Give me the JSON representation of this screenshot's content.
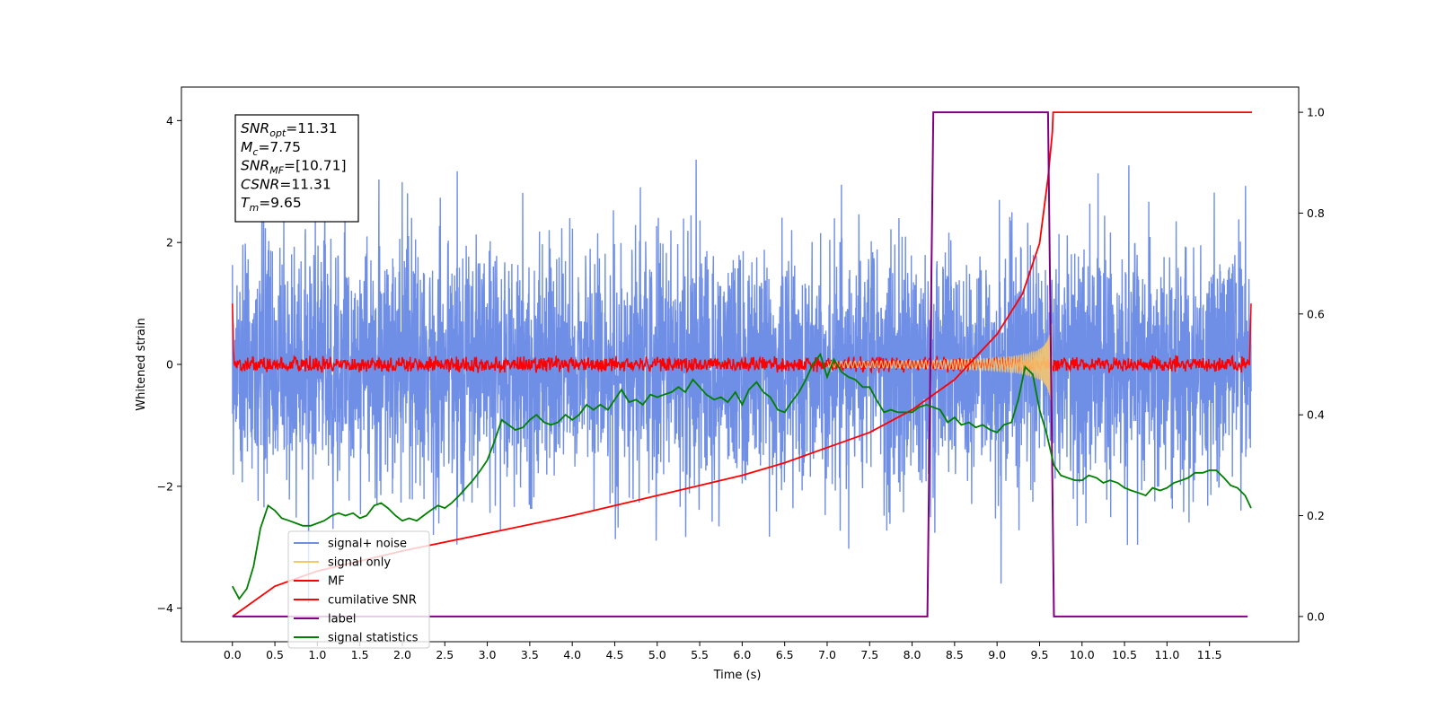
{
  "chart_data": {
    "type": "line",
    "xlabel": "Time (s)",
    "ylabel": "Whitened strain",
    "xlim": [
      -0.6,
      12.55
    ],
    "ylim": [
      -4.55,
      4.55
    ],
    "y2lim": [
      -0.05,
      1.05
    ],
    "x_ticks": [
      0.0,
      0.5,
      1.0,
      1.5,
      2.0,
      2.5,
      3.0,
      3.5,
      4.0,
      4.5,
      5.0,
      5.5,
      6.0,
      6.5,
      7.0,
      7.5,
      8.0,
      8.5,
      9.0,
      9.5,
      10.0,
      10.5,
      11.0,
      11.5
    ],
    "x_tick_labels": [
      "0.0",
      "0.5",
      "1.0",
      "1.5",
      "2.0",
      "2.5",
      "3.0",
      "3.5",
      "4.0",
      "4.5",
      "5.0",
      "5.5",
      "6.0",
      "6.5",
      "7.0",
      "7.5",
      "8.0",
      "8.5",
      "9.0",
      "9.5",
      "10.0",
      "10.5",
      "11.0",
      "11.5"
    ],
    "y_ticks": [
      -4,
      -2,
      0,
      2,
      4
    ],
    "y_tick_labels": [
      "−4",
      "−2",
      "0",
      "2",
      "4"
    ],
    "y2_ticks": [
      0.0,
      0.2,
      0.4,
      0.6,
      0.8,
      1.0
    ],
    "y2_tick_labels": [
      "0.0",
      "0.2",
      "0.4",
      "0.6",
      "0.8",
      "1.0"
    ],
    "legend_placement": "lower-left",
    "annotation": [
      {
        "name": "SNR",
        "sub": "opt",
        "value": "=11.31"
      },
      {
        "name": "M",
        "sub": "c",
        "value": "=7.75"
      },
      {
        "name": "SNR",
        "sub": "MF",
        "value": "=[10.71]"
      },
      {
        "name": "CSNR",
        "sub": "",
        "value": "=11.31"
      },
      {
        "name": "T",
        "sub": "m",
        "value": "=9.65"
      }
    ],
    "series": [
      {
        "name": "signal+ noise",
        "color": "#6f8ee6",
        "axis": "left",
        "description_values": {
          "t_start": 0.0,
          "t_end": 11.99,
          "noise_sigma": 1.0,
          "peak_max": 4.15,
          "peak_min": -4.1
        }
      },
      {
        "name": "signal only",
        "color": "#f5c86e",
        "axis": "left",
        "chirp": {
          "t_start": 7.0,
          "t_merge": 9.65,
          "amp_end": 0.9
        }
      },
      {
        "name": "MF",
        "color": "#ff0000",
        "axis": "left",
        "description_values": {
          "level": 0.0,
          "spread": 0.15,
          "edge_value": 1.0
        }
      },
      {
        "name": "cumilative SNR",
        "color": "#ff0000",
        "axis": "right",
        "points": [
          [
            0.0,
            0.0
          ],
          [
            0.5,
            0.06
          ],
          [
            1.0,
            0.09
          ],
          [
            2.0,
            0.13
          ],
          [
            3.0,
            0.165
          ],
          [
            4.0,
            0.2
          ],
          [
            5.0,
            0.24
          ],
          [
            6.0,
            0.28
          ],
          [
            6.5,
            0.305
          ],
          [
            7.0,
            0.335
          ],
          [
            7.5,
            0.365
          ],
          [
            8.0,
            0.41
          ],
          [
            8.5,
            0.47
          ],
          [
            9.0,
            0.56
          ],
          [
            9.3,
            0.64
          ],
          [
            9.5,
            0.74
          ],
          [
            9.6,
            0.87
          ],
          [
            9.65,
            0.96
          ],
          [
            9.66,
            1.0
          ],
          [
            12.0,
            1.0
          ]
        ]
      },
      {
        "name": "label",
        "color": "#800080",
        "axis": "right",
        "points": [
          [
            0.0,
            0.0
          ],
          [
            8.18,
            0.0
          ],
          [
            8.25,
            1.0
          ],
          [
            9.6,
            1.0
          ],
          [
            9.67,
            0.0
          ],
          [
            11.95,
            0.0
          ]
        ]
      },
      {
        "name": "signal statistics",
        "color": "#008000",
        "axis": "right",
        "points": [
          [
            0.0,
            0.06
          ],
          [
            0.08,
            0.035
          ],
          [
            0.17,
            0.055
          ],
          [
            0.25,
            0.1
          ],
          [
            0.33,
            0.175
          ],
          [
            0.42,
            0.22
          ],
          [
            0.5,
            0.21
          ],
          [
            0.58,
            0.195
          ],
          [
            0.67,
            0.19
          ],
          [
            0.75,
            0.185
          ],
          [
            0.83,
            0.18
          ],
          [
            0.92,
            0.18
          ],
          [
            1.0,
            0.185
          ],
          [
            1.08,
            0.19
          ],
          [
            1.17,
            0.2
          ],
          [
            1.25,
            0.205
          ],
          [
            1.33,
            0.2
          ],
          [
            1.42,
            0.205
          ],
          [
            1.5,
            0.195
          ],
          [
            1.58,
            0.2
          ],
          [
            1.67,
            0.22
          ],
          [
            1.75,
            0.225
          ],
          [
            1.83,
            0.215
          ],
          [
            1.92,
            0.2
          ],
          [
            2.0,
            0.19
          ],
          [
            2.08,
            0.195
          ],
          [
            2.17,
            0.19
          ],
          [
            2.25,
            0.2
          ],
          [
            2.33,
            0.21
          ],
          [
            2.42,
            0.22
          ],
          [
            2.5,
            0.215
          ],
          [
            2.58,
            0.225
          ],
          [
            2.67,
            0.24
          ],
          [
            2.75,
            0.255
          ],
          [
            2.83,
            0.27
          ],
          [
            2.92,
            0.29
          ],
          [
            3.0,
            0.31
          ],
          [
            3.08,
            0.345
          ],
          [
            3.17,
            0.39
          ],
          [
            3.25,
            0.38
          ],
          [
            3.33,
            0.37
          ],
          [
            3.42,
            0.375
          ],
          [
            3.5,
            0.39
          ],
          [
            3.58,
            0.4
          ],
          [
            3.67,
            0.385
          ],
          [
            3.75,
            0.38
          ],
          [
            3.83,
            0.385
          ],
          [
            3.92,
            0.4
          ],
          [
            4.0,
            0.39
          ],
          [
            4.08,
            0.4
          ],
          [
            4.17,
            0.42
          ],
          [
            4.25,
            0.41
          ],
          [
            4.33,
            0.42
          ],
          [
            4.42,
            0.41
          ],
          [
            4.5,
            0.43
          ],
          [
            4.58,
            0.45
          ],
          [
            4.67,
            0.425
          ],
          [
            4.75,
            0.43
          ],
          [
            4.83,
            0.42
          ],
          [
            4.92,
            0.44
          ],
          [
            5.0,
            0.435
          ],
          [
            5.08,
            0.44
          ],
          [
            5.17,
            0.445
          ],
          [
            5.25,
            0.455
          ],
          [
            5.33,
            0.445
          ],
          [
            5.42,
            0.47
          ],
          [
            5.5,
            0.455
          ],
          [
            5.58,
            0.44
          ],
          [
            5.67,
            0.43
          ],
          [
            5.75,
            0.435
          ],
          [
            5.83,
            0.425
          ],
          [
            5.92,
            0.445
          ],
          [
            6.0,
            0.42
          ],
          [
            6.08,
            0.45
          ],
          [
            6.17,
            0.465
          ],
          [
            6.25,
            0.445
          ],
          [
            6.33,
            0.435
          ],
          [
            6.42,
            0.41
          ],
          [
            6.5,
            0.405
          ],
          [
            6.58,
            0.425
          ],
          [
            6.67,
            0.445
          ],
          [
            6.75,
            0.47
          ],
          [
            6.83,
            0.5
          ],
          [
            6.92,
            0.52
          ],
          [
            7.0,
            0.475
          ],
          [
            7.08,
            0.51
          ],
          [
            7.17,
            0.485
          ],
          [
            7.25,
            0.475
          ],
          [
            7.33,
            0.47
          ],
          [
            7.42,
            0.455
          ],
          [
            7.5,
            0.455
          ],
          [
            7.58,
            0.43
          ],
          [
            7.67,
            0.405
          ],
          [
            7.75,
            0.41
          ],
          [
            7.83,
            0.405
          ],
          [
            7.92,
            0.405
          ],
          [
            8.0,
            0.405
          ],
          [
            8.08,
            0.415
          ],
          [
            8.17,
            0.42
          ],
          [
            8.25,
            0.415
          ],
          [
            8.33,
            0.41
          ],
          [
            8.42,
            0.385
          ],
          [
            8.5,
            0.395
          ],
          [
            8.58,
            0.38
          ],
          [
            8.67,
            0.385
          ],
          [
            8.75,
            0.375
          ],
          [
            8.83,
            0.38
          ],
          [
            8.92,
            0.37
          ],
          [
            9.0,
            0.365
          ],
          [
            9.08,
            0.38
          ],
          [
            9.17,
            0.385
          ],
          [
            9.25,
            0.43
          ],
          [
            9.33,
            0.495
          ],
          [
            9.42,
            0.48
          ],
          [
            9.5,
            0.41
          ],
          [
            9.58,
            0.365
          ],
          [
            9.67,
            0.3
          ],
          [
            9.75,
            0.28
          ],
          [
            9.83,
            0.275
          ],
          [
            9.92,
            0.27
          ],
          [
            10.0,
            0.27
          ],
          [
            10.08,
            0.28
          ],
          [
            10.17,
            0.275
          ],
          [
            10.25,
            0.265
          ],
          [
            10.33,
            0.27
          ],
          [
            10.42,
            0.265
          ],
          [
            10.5,
            0.255
          ],
          [
            10.58,
            0.25
          ],
          [
            10.67,
            0.245
          ],
          [
            10.75,
            0.24
          ],
          [
            10.83,
            0.255
          ],
          [
            10.92,
            0.25
          ],
          [
            11.0,
            0.255
          ],
          [
            11.08,
            0.265
          ],
          [
            11.17,
            0.27
          ],
          [
            11.25,
            0.275
          ],
          [
            11.33,
            0.285
          ],
          [
            11.42,
            0.285
          ],
          [
            11.5,
            0.29
          ],
          [
            11.58,
            0.29
          ],
          [
            11.67,
            0.275
          ],
          [
            11.75,
            0.26
          ],
          [
            11.83,
            0.255
          ],
          [
            11.92,
            0.24
          ],
          [
            11.99,
            0.215
          ]
        ]
      }
    ]
  }
}
